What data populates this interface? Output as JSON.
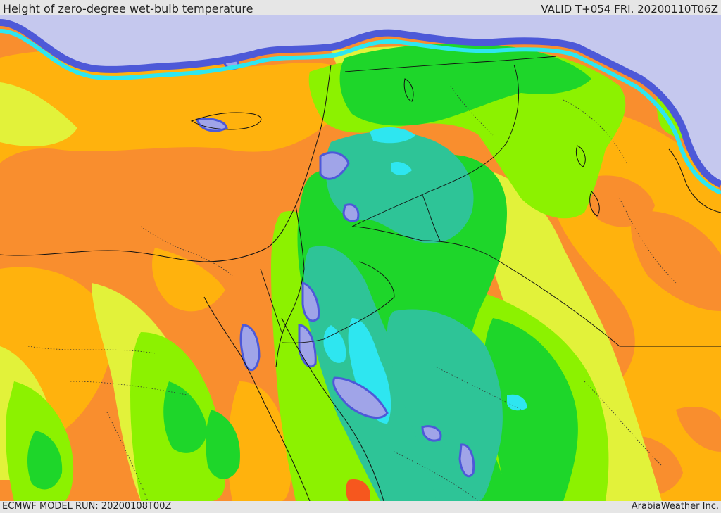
{
  "header": {
    "title": "Height of zero-degree wet-bulb temperature",
    "valid": "VALID T+054 FRI. 20200110T06Z"
  },
  "footer": {
    "model_run": "ECMWF MODEL RUN: 20200108T00Z",
    "credit": "ArabiaWeather Inc."
  },
  "palette": {
    "sea_cold": "#c5c8ee",
    "lavender": "#a0a4e8",
    "blue": "#4d59d8",
    "cyan": "#2ee6f0",
    "teal": "#2ec497",
    "green": "#1ed62a",
    "lime": "#8cf200",
    "yellow": "#e2f23a",
    "amber": "#ffb20d",
    "orange": "#f98e2e",
    "red": "#f6571e"
  },
  "map_layers": [
    "country-borders",
    "coastlines",
    "region-borders"
  ]
}
